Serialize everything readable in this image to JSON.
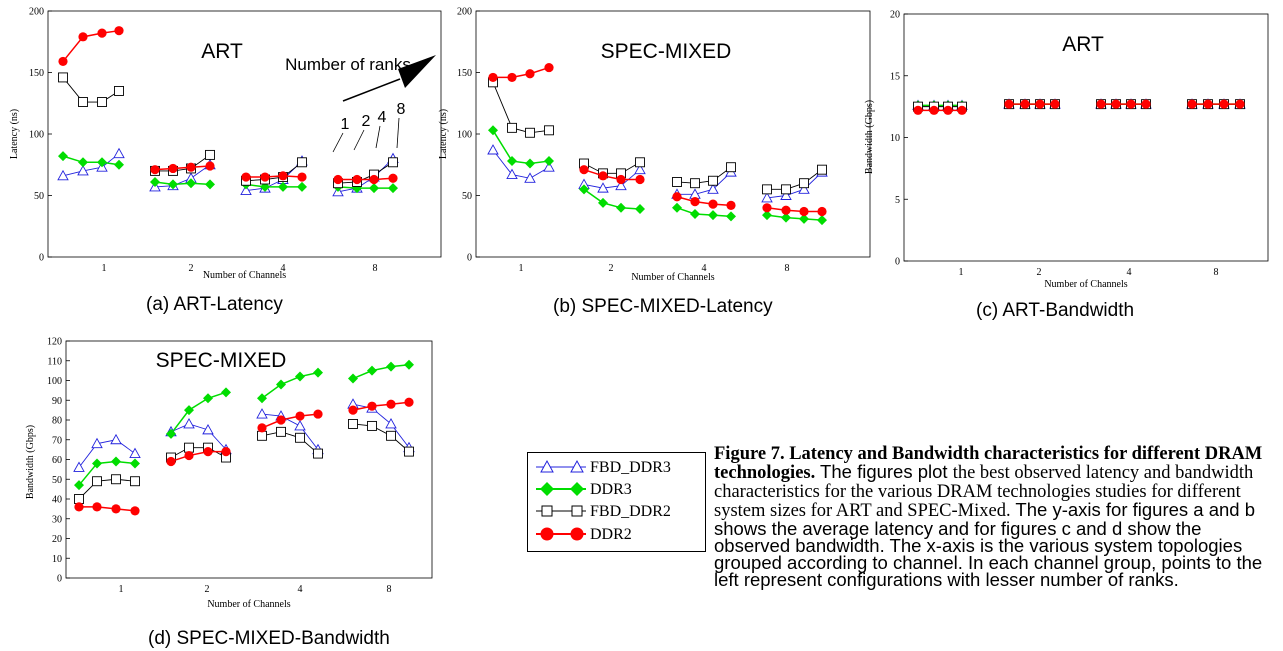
{
  "captions": {
    "a": "(a) ART-Latency",
    "b": "(b) SPEC-MIXED-Latency",
    "c": "(c) ART-Bandwidth",
    "d": "(d) SPEC-MIXED-Bandwidth"
  },
  "legend": [
    {
      "name": "FBD_DDR3",
      "color": "#2222dd",
      "marker": "triangle-open"
    },
    {
      "name": "DDR3",
      "color": "#00dd00",
      "marker": "diamond-filled"
    },
    {
      "name": "FBD_DDR2",
      "color": "#000000",
      "marker": "square-open"
    },
    {
      "name": "DDR2",
      "color": "#ff0000",
      "marker": "circle-filled"
    }
  ],
  "figure_text": {
    "title": "Figure 7. Latency and Bandwidth characteristics for different DRAM technologies.",
    "s1": "The figures plot",
    "s2": "the best observed latency and bandwidth characteristics for the various DRAM technologies studies for different system sizes for ART and SPEC-Mixed.",
    "s3": "The y-axis for figures a and b shows the average latency and for figures c and d show the observed bandwidth. The x-axis is the various system topologies grouped according to channel. In each channel group, points to the left represent configurations with lesser number of ranks."
  },
  "chart_data": [
    {
      "id": "a",
      "type": "line",
      "title": "ART",
      "xlabel": "Number of Channels",
      "ylabel": "Latency (ns)",
      "categories": [
        "1",
        "2",
        "4",
        "8"
      ],
      "ylim": [
        0,
        200
      ],
      "yticks": [
        0,
        50,
        100,
        150,
        200
      ],
      "annotation": {
        "text": "Number of ranks",
        "ranks": [
          "1",
          "2",
          "4",
          "8"
        ]
      },
      "series": [
        {
          "name": "FBD_DDR3",
          "groups": [
            [
              66,
              70,
              73,
              84
            ],
            [
              57,
              58,
              64,
              75
            ],
            [
              54,
              56,
              63,
              78
            ],
            [
              53,
              56,
              65,
              80
            ]
          ]
        },
        {
          "name": "DDR3",
          "groups": [
            [
              82,
              77,
              77,
              75
            ],
            [
              61,
              59,
              60,
              59
            ],
            [
              59,
              57,
              57,
              57
            ],
            [
              57,
              56,
              56,
              56
            ]
          ]
        },
        {
          "name": "FBD_DDR2",
          "groups": [
            [
              146,
              126,
              126,
              135
            ],
            [
              70,
              70,
              72,
              83
            ],
            [
              62,
              63,
              65,
              77
            ],
            [
              60,
              61,
              67,
              77
            ]
          ]
        },
        {
          "name": "DDR2",
          "groups": [
            [
              159,
              179,
              182,
              184
            ],
            [
              71,
              72,
              73,
              74
            ],
            [
              65,
              65,
              66,
              65
            ],
            [
              63,
              63,
              63,
              64
            ]
          ]
        }
      ]
    },
    {
      "id": "b",
      "type": "line",
      "title": "SPEC-MIXED",
      "xlabel": "Number of Channels",
      "ylabel": "Latency (ns)",
      "categories": [
        "1",
        "2",
        "4",
        "8"
      ],
      "ylim": [
        0,
        200
      ],
      "yticks": [
        0,
        50,
        100,
        150,
        200
      ],
      "series": [
        {
          "name": "FBD_DDR3",
          "groups": [
            [
              87,
              67,
              64,
              73
            ],
            [
              59,
              56,
              58,
              71
            ],
            [
              51,
              51,
              55,
              69
            ],
            [
              48,
              50,
              55,
              69
            ]
          ]
        },
        {
          "name": "DDR3",
          "groups": [
            [
              103,
              78,
              76,
              78
            ],
            [
              55,
              44,
              40,
              39
            ],
            [
              40,
              35,
              34,
              33
            ],
            [
              34,
              32,
              31,
              30
            ]
          ]
        },
        {
          "name": "FBD_DDR2",
          "groups": [
            [
              142,
              105,
              101,
              103
            ],
            [
              76,
              68,
              68,
              77
            ],
            [
              61,
              60,
              62,
              73
            ],
            [
              55,
              55,
              60,
              71
            ]
          ]
        },
        {
          "name": "DDR2",
          "groups": [
            [
              146,
              146,
              149,
              154
            ],
            [
              71,
              66,
              63,
              63
            ],
            [
              49,
              45,
              43,
              42
            ],
            [
              40,
              38,
              37,
              37
            ]
          ]
        }
      ]
    },
    {
      "id": "c",
      "type": "line",
      "title": "ART",
      "xlabel": "Number of Channels",
      "ylabel": "Bandwidth (Gbps)",
      "categories": [
        "1",
        "2",
        "4",
        "8"
      ],
      "ylim": [
        0,
        20
      ],
      "yticks": [
        0,
        5,
        10,
        15,
        20
      ],
      "series": [
        {
          "name": "FBD_DDR3",
          "groups": [
            [
              12.6,
              12.6,
              12.6,
              12.6
            ],
            [
              12.7,
              12.7,
              12.7,
              12.7
            ],
            [
              12.7,
              12.7,
              12.7,
              12.7
            ],
            [
              12.7,
              12.7,
              12.7,
              12.7
            ]
          ]
        },
        {
          "name": "DDR3",
          "groups": [
            [
              12.6,
              12.6,
              12.6,
              12.6
            ],
            [
              12.7,
              12.7,
              12.7,
              12.7
            ],
            [
              12.7,
              12.7,
              12.7,
              12.7
            ],
            [
              12.7,
              12.7,
              12.7,
              12.7
            ]
          ]
        },
        {
          "name": "FBD_DDR2",
          "groups": [
            [
              12.5,
              12.5,
              12.5,
              12.5
            ],
            [
              12.7,
              12.7,
              12.7,
              12.7
            ],
            [
              12.7,
              12.7,
              12.7,
              12.7
            ],
            [
              12.7,
              12.7,
              12.7,
              12.7
            ]
          ]
        },
        {
          "name": "DDR2",
          "groups": [
            [
              12.2,
              12.2,
              12.2,
              12.2
            ],
            [
              12.7,
              12.7,
              12.7,
              12.7
            ],
            [
              12.7,
              12.7,
              12.7,
              12.7
            ],
            [
              12.7,
              12.7,
              12.7,
              12.7
            ]
          ]
        }
      ]
    },
    {
      "id": "d",
      "type": "line",
      "title": "SPEC-MIXED",
      "xlabel": "Number of Channels",
      "ylabel": "Bandwidth (Gbps)",
      "categories": [
        "1",
        "2",
        "4",
        "8"
      ],
      "ylim": [
        0,
        120
      ],
      "yticks": [
        0,
        10,
        20,
        30,
        40,
        50,
        60,
        70,
        80,
        90,
        100,
        110,
        120
      ],
      "series": [
        {
          "name": "FBD_DDR3",
          "groups": [
            [
              56,
              68,
              70,
              63
            ],
            [
              74,
              78,
              75,
              65
            ],
            [
              83,
              82,
              77,
              65
            ],
            [
              88,
              86,
              78,
              66
            ]
          ]
        },
        {
          "name": "DDR3",
          "groups": [
            [
              47,
              58,
              59,
              58
            ],
            [
              73,
              85,
              91,
              94
            ],
            [
              91,
              98,
              102,
              104
            ],
            [
              101,
              105,
              107,
              108
            ]
          ]
        },
        {
          "name": "FBD_DDR2",
          "groups": [
            [
              40,
              49,
              50,
              49
            ],
            [
              61,
              66,
              66,
              61
            ],
            [
              72,
              74,
              71,
              63
            ],
            [
              78,
              77,
              72,
              64
            ]
          ]
        },
        {
          "name": "DDR2",
          "groups": [
            [
              36,
              36,
              35,
              34
            ],
            [
              59,
              62,
              64,
              64
            ],
            [
              76,
              80,
              82,
              83
            ],
            [
              85,
              87,
              88,
              89
            ]
          ]
        }
      ]
    }
  ]
}
